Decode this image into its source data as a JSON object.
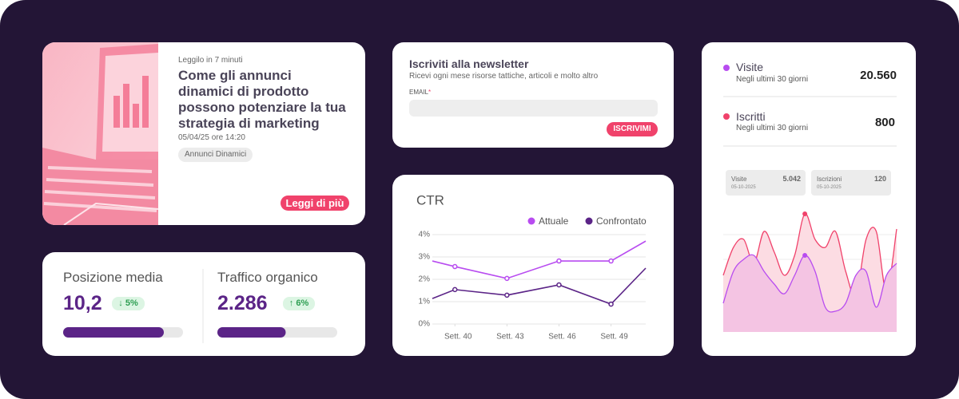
{
  "article": {
    "read_time": "Leggilo in 7 minuti",
    "title": "Come gli annunci dinamici di prodotto possono potenziare la tua strategia di marketing",
    "date": "05/04/25 ore 14:20",
    "tag": "Annunci Dinamici",
    "button": "Leggi di più"
  },
  "newsletter": {
    "title": "Iscriviti alla newsletter",
    "subtitle": "Ricevi ogni mese risorse tattiche, articoli e molto altro",
    "email_label": "EMAIL",
    "required_mark": "*",
    "button": "ISCRIVIMI"
  },
  "stats": [
    {
      "label": "Posizione media",
      "value": "10,2",
      "change": "↓ 5%",
      "progress": 84
    },
    {
      "label": "Traffico organico",
      "value": "2.286",
      "change": "↑ 6%",
      "progress": 57
    }
  ],
  "chart_data": {
    "type": "line",
    "title": "CTR",
    "x": [
      38.7,
      40,
      43,
      46,
      49,
      51
    ],
    "xlim": [
      38.7,
      51
    ],
    "xticks": [
      {
        "value": 40,
        "label": "Sett. 40"
      },
      {
        "value": 43,
        "label": "Sett. 43"
      },
      {
        "value": 46,
        "label": "Sett. 46"
      },
      {
        "value": 49,
        "label": "Sett. 49"
      }
    ],
    "ylim": [
      0,
      4
    ],
    "yticks": [
      {
        "value": 0,
        "label": "0%"
      },
      {
        "value": 1,
        "label": "1%"
      },
      {
        "value": 2,
        "label": "2%"
      },
      {
        "value": 3,
        "label": "3%"
      },
      {
        "value": 4,
        "label": "4%"
      }
    ],
    "grid": true,
    "series": [
      {
        "name": "Attuale",
        "color": "#b84cf0",
        "values": [
          2.82,
          2.57,
          2.04,
          2.82,
          2.82,
          3.71
        ]
      },
      {
        "name": "Confrontato",
        "color": "#5b2487",
        "values": [
          1.14,
          1.54,
          1.29,
          1.75,
          0.89,
          2.5
        ]
      }
    ]
  },
  "audience": {
    "metrics": [
      {
        "name": "Visite",
        "period": "Negli ultimi 30 giorni",
        "value": "20.560",
        "color": "#b84cf0"
      },
      {
        "name": "Iscritti",
        "period": "Negli ultimi 30 giorni",
        "value": "800",
        "color": "#f0426b"
      }
    ],
    "tooltips": [
      {
        "label": "Visite",
        "value": "5.042",
        "date": "05-10-2025"
      },
      {
        "label": "Iscrizioni",
        "value": "120",
        "date": "05-10-2025"
      }
    ],
    "area_chart": {
      "type": "area",
      "ylim": [
        0,
        160
      ],
      "series": [
        {
          "color": "#f0426b",
          "values": [
            71,
            106,
            116,
            86,
            126,
            100,
            71,
            96,
            148,
            116,
            106,
            126,
            76,
            46,
            116,
            126,
            51,
            129
          ]
        },
        {
          "color": "#b84cf0",
          "values": [
            36,
            76,
            91,
            96,
            76,
            60,
            48,
            71,
            96,
            76,
            31,
            26,
            36,
            71,
            76,
            31,
            71,
            86
          ]
        }
      ]
    }
  }
}
